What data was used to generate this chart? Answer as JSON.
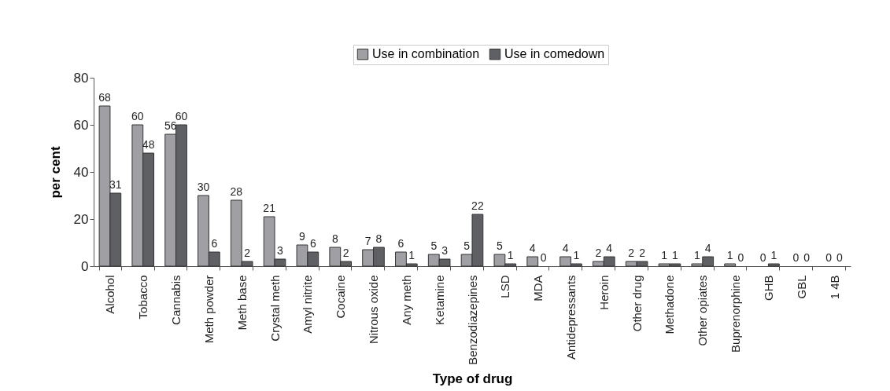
{
  "chart_data": {
    "type": "bar",
    "xlabel": "Type of drug",
    "ylabel": "per cent",
    "categories": [
      "Alcohol",
      "Tobacco",
      "Cannabis",
      "Meth powder",
      "Meth base",
      "Crystal meth",
      "Amyl nitrite",
      "Cocaine",
      "Nitrous oxide",
      "Any meth",
      "Ketamine",
      "Benzodiazepines",
      "LSD",
      "MDA",
      "Antidepressants",
      "Heroin",
      "Other drug",
      "Methadone",
      "Other opiates",
      "Buprenorphine",
      "GHB",
      "GBL",
      "1 4B"
    ],
    "series": [
      {
        "name": "Use in combination",
        "color": "#a0a0a4",
        "values": [
          68,
          60,
          56,
          30,
          28,
          21,
          9,
          8,
          7,
          6,
          5,
          5,
          5,
          4,
          4,
          2,
          2,
          1,
          1,
          1,
          0,
          0,
          0
        ]
      },
      {
        "name": "Use in comedown",
        "color": "#5f6064",
        "values": [
          31,
          48,
          60,
          6,
          2,
          3,
          6,
          2,
          8,
          1,
          3,
          22,
          1,
          0,
          1,
          4,
          2,
          1,
          4,
          0,
          1,
          0,
          0
        ]
      }
    ],
    "ylim": [
      0,
      80
    ],
    "yticks": [
      0,
      20,
      40,
      60,
      80
    ],
    "grid": false,
    "legend": "top",
    "data_labels": true
  }
}
